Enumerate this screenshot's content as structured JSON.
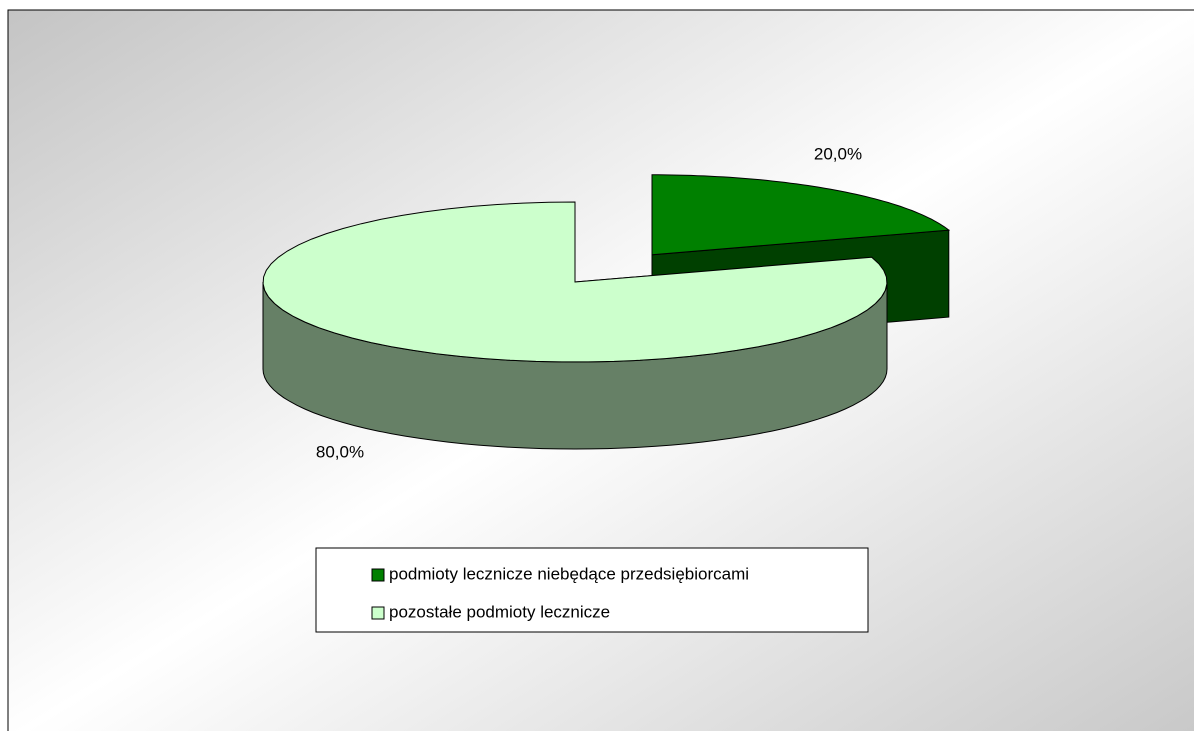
{
  "chart_data": {
    "type": "pie3d",
    "categories": [
      "podmioty lecznicze niebędące przedsiębiorcami",
      "pozostałe podmioty lecznicze"
    ],
    "values": [
      20,
      80
    ],
    "value_labels": [
      "20,0%",
      "80,0%"
    ],
    "colors": [
      "#008000",
      "#ccffcc"
    ],
    "legend": "bottom"
  }
}
